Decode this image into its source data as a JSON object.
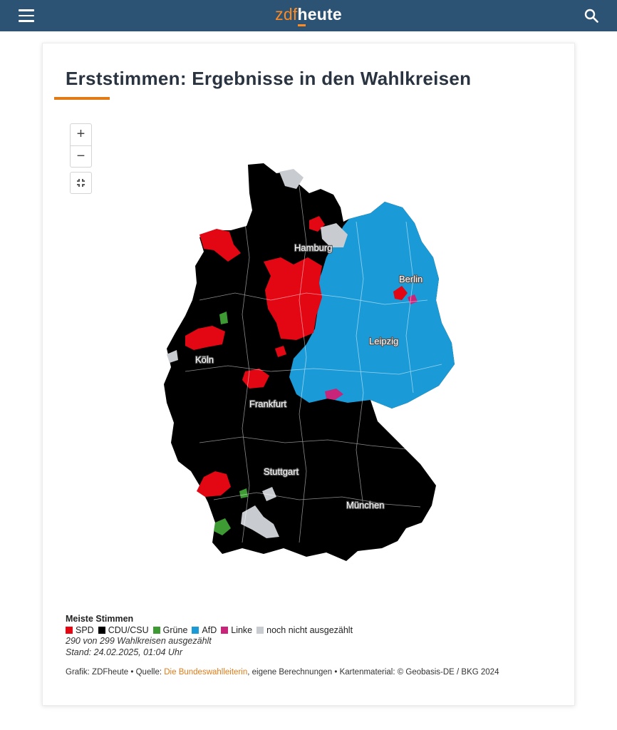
{
  "header": {
    "logo_zdf": "zdf",
    "logo_heute": "heute",
    "bg_color": "#2d5374",
    "menu_icon": "hamburger-menu-icon",
    "search_icon": "search-icon"
  },
  "card": {
    "title_bold": "Erststimmen",
    "title_rest": ": Ergebnisse in den Wahlkreisen",
    "accent_color": "#e07b18"
  },
  "map_controls": {
    "zoom_in": "+",
    "zoom_out": "−",
    "fit_icon": "collapse-fullscreen-icon"
  },
  "map": {
    "cities": [
      "Hamburg",
      "Berlin",
      "Leipzig",
      "Köln",
      "Frankfurt",
      "Stuttgart",
      "München"
    ],
    "colors": {
      "spd": "#e30613",
      "cdu": "#000000",
      "gruene": "#3e9b33",
      "afd": "#1a9bd7",
      "linke": "#c8247a",
      "offen": "#c8cbd0"
    }
  },
  "legend": {
    "title": "Meiste Stimmen",
    "items": [
      {
        "label": "SPD",
        "color": "#e30613"
      },
      {
        "label": "CDU/CSU",
        "color": "#000000"
      },
      {
        "label": "Grüne",
        "color": "#3e9b33"
      },
      {
        "label": "AfD",
        "color": "#1a9bd7"
      },
      {
        "label": "Linke",
        "color": "#c8247a"
      },
      {
        "label": "noch nicht ausgezählt",
        "color": "#c8cbd0"
      }
    ],
    "counted": "290 von 299 Wahlkreisen ausgezählt",
    "stand": "Stand: 24.02.2025, 01:04 Uhr"
  },
  "source": {
    "prefix": "Grafik: ZDFheute • Quelle: ",
    "link": "Die Bundeswahlleiterin",
    "suffix": ", eigene Berechnungen • Kartenmaterial: © Geobasis-DE / BKG 2024"
  }
}
